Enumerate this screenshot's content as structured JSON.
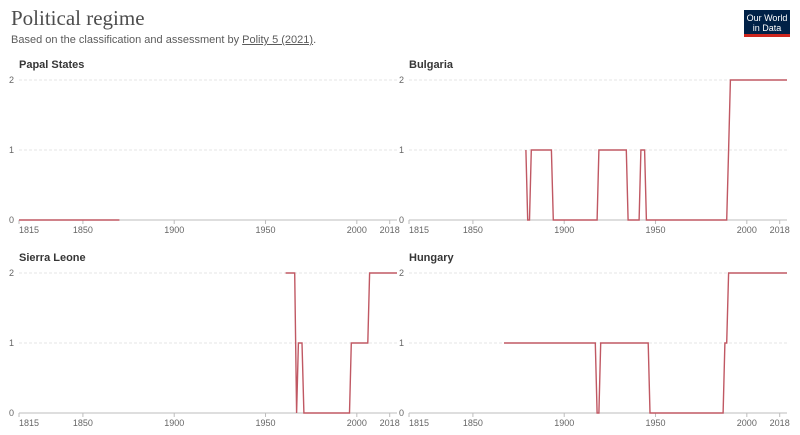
{
  "header": {
    "title": "Political regime",
    "subtitle_prefix": "Based on the classification and assessment by ",
    "source_link": "Polity 5 (2021)",
    "subtitle_suffix": ".",
    "logo_line1": "Our World",
    "logo_line2": "in Data"
  },
  "colors": {
    "series": "#c05863",
    "logo_bg": "#002147",
    "logo_accent": "#ce261e"
  },
  "chart_data": [
    {
      "type": "line",
      "title": "Papal States",
      "x_ticks": [
        1815,
        1850,
        1900,
        1950,
        2000,
        2018
      ],
      "y_ticks": [
        0,
        1,
        2
      ],
      "xlim": [
        1815,
        2022
      ],
      "ylim": [
        0,
        2
      ],
      "series": [
        {
          "points": [
            [
              1815,
              0
            ],
            [
              1870,
              0
            ]
          ]
        }
      ]
    },
    {
      "type": "line",
      "title": "Bulgaria",
      "x_ticks": [
        1815,
        1850,
        1900,
        1950,
        2000,
        2018
      ],
      "y_ticks": [
        0,
        1,
        2
      ],
      "xlim": [
        1815,
        2022
      ],
      "ylim": [
        0,
        2
      ],
      "series": [
        {
          "points": [
            [
              1879,
              1
            ],
            [
              1880,
              0
            ],
            [
              1881,
              0
            ],
            [
              1882,
              1
            ],
            [
              1886,
              1
            ],
            [
              1893,
              1
            ],
            [
              1894,
              0
            ],
            [
              1918,
              0
            ],
            [
              1919,
              1
            ],
            [
              1934,
              1
            ],
            [
              1935,
              0
            ],
            [
              1941,
              0
            ],
            [
              1942,
              1
            ],
            [
              1944,
              1
            ],
            [
              1945,
              0
            ],
            [
              1989,
              0
            ],
            [
              1990,
              1
            ],
            [
              1991,
              2
            ],
            [
              2018,
              2
            ],
            [
              2022,
              2
            ]
          ]
        }
      ]
    },
    {
      "type": "line",
      "title": "Sierra Leone",
      "x_ticks": [
        1815,
        1850,
        1900,
        1950,
        2000,
        2018
      ],
      "y_ticks": [
        0,
        1,
        2
      ],
      "xlim": [
        1815,
        2022
      ],
      "ylim": [
        0,
        2
      ],
      "series": [
        {
          "points": [
            [
              1961,
              2
            ],
            [
              1966,
              2
            ],
            [
              1967,
              0
            ],
            [
              1968,
              1
            ],
            [
              1970,
              1
            ],
            [
              1971,
              0
            ],
            [
              1996,
              0
            ],
            [
              1997,
              1
            ],
            [
              2006,
              1
            ],
            [
              2007,
              2
            ],
            [
              2018,
              2
            ],
            [
              2022,
              2
            ]
          ]
        }
      ]
    },
    {
      "type": "line",
      "title": "Hungary",
      "x_ticks": [
        1815,
        1850,
        1900,
        1950,
        2000,
        2018
      ],
      "y_ticks": [
        0,
        1,
        2
      ],
      "xlim": [
        1815,
        2022
      ],
      "ylim": [
        0,
        2
      ],
      "series": [
        {
          "points": [
            [
              1867,
              1
            ],
            [
              1917,
              1
            ],
            [
              1918,
              0
            ],
            [
              1919,
              0
            ],
            [
              1920,
              1
            ],
            [
              1946,
              1
            ],
            [
              1947,
              0
            ],
            [
              1987,
              0
            ],
            [
              1988,
              1
            ],
            [
              1989,
              1
            ],
            [
              1990,
              2
            ],
            [
              2018,
              2
            ],
            [
              2022,
              2
            ]
          ]
        }
      ]
    }
  ]
}
